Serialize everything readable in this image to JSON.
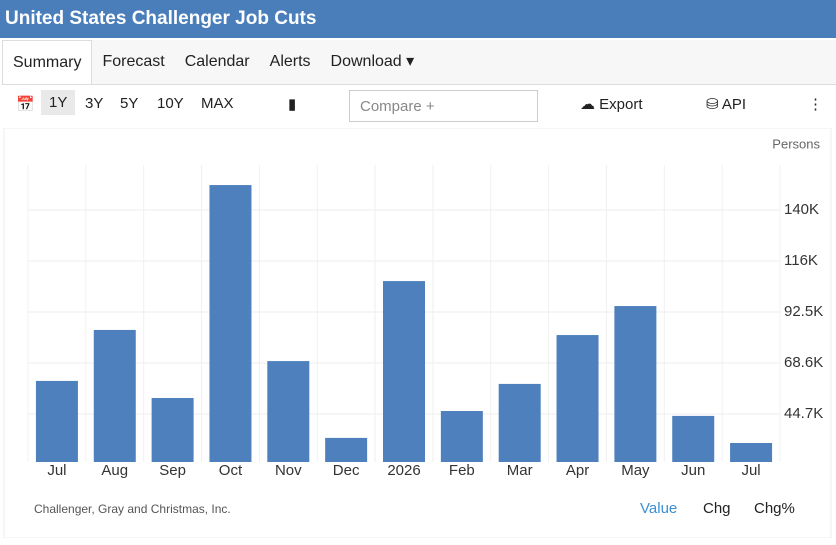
{
  "header": {
    "title": "United States Challenger Job Cuts"
  },
  "tabs": [
    "Summary",
    "Forecast",
    "Calendar",
    "Alerts",
    "Download"
  ],
  "toolbar": {
    "periods": [
      "1Y",
      "3Y",
      "5Y",
      "10Y",
      "MAX"
    ],
    "compare": "Compare +",
    "export": "Export",
    "api": "API"
  },
  "chart_data": {
    "type": "bar",
    "unit": "Persons",
    "color": "#4e80bd",
    "categories": [
      "Jul",
      "Aug",
      "Sep",
      "Oct",
      "Nov",
      "Dec",
      "2026",
      "Feb",
      "Mar",
      "Apr",
      "May",
      "Jun",
      "Jul"
    ],
    "values": [
      60200,
      84100,
      52200,
      152000,
      69500,
      33500,
      107000,
      46100,
      58800,
      81700,
      95300,
      43800,
      31100
    ],
    "ylim": [
      22200,
      161400
    ],
    "yticks": [
      {
        "value": 44700,
        "label": "44.7K"
      },
      {
        "value": 68600,
        "label": "68.6K"
      },
      {
        "value": 92500,
        "label": "92.5K"
      },
      {
        "value": 116400,
        "label": "116K"
      },
      {
        "value": 140300,
        "label": "140K"
      }
    ],
    "grid": true
  },
  "footer": {
    "source": "Challenger, Gray and Christmas, Inc.",
    "modes": [
      "Value",
      "Chg",
      "Chg%"
    ]
  }
}
